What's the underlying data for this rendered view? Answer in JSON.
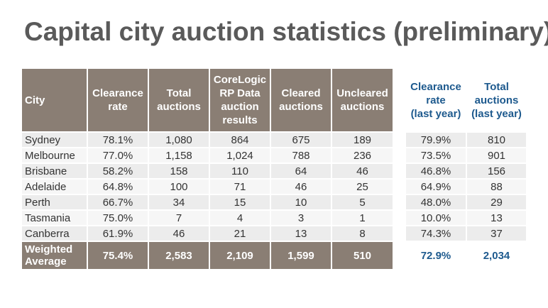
{
  "title": "Capital city auction statistics (preliminary)",
  "main_table": {
    "headers": {
      "city": "City",
      "clearance_rate": [
        "Clearance",
        "rate"
      ],
      "total_auctions": [
        "Total",
        "auctions"
      ],
      "corelogic": [
        "CoreLogic",
        "RP Data",
        "auction",
        "results"
      ],
      "cleared": [
        "Cleared",
        "auctions"
      ],
      "uncleared": [
        "Uncleared",
        "auctions"
      ]
    },
    "rows": [
      {
        "city": "Sydney",
        "clearance_rate": "78.1%",
        "total_auctions": "1,080",
        "corelogic": "864",
        "cleared": "675",
        "uncleared": "189"
      },
      {
        "city": "Melbourne",
        "clearance_rate": "77.0%",
        "total_auctions": "1,158",
        "corelogic": "1,024",
        "cleared": "788",
        "uncleared": "236"
      },
      {
        "city": "Brisbane",
        "clearance_rate": "58.2%",
        "total_auctions": "158",
        "corelogic": "110",
        "cleared": "64",
        "uncleared": "46"
      },
      {
        "city": "Adelaide",
        "clearance_rate": "64.8%",
        "total_auctions": "100",
        "corelogic": "71",
        "cleared": "46",
        "uncleared": "25"
      },
      {
        "city": "Perth",
        "clearance_rate": "66.7%",
        "total_auctions": "34",
        "corelogic": "15",
        "cleared": "10",
        "uncleared": "5"
      },
      {
        "city": "Tasmania",
        "clearance_rate": "75.0%",
        "total_auctions": "7",
        "corelogic": "4",
        "cleared": "3",
        "uncleared": "1"
      },
      {
        "city": "Canberra",
        "clearance_rate": "61.9%",
        "total_auctions": "46",
        "corelogic": "21",
        "cleared": "13",
        "uncleared": "8"
      }
    ],
    "footer": {
      "city": [
        "Weighted",
        "Average"
      ],
      "clearance_rate": "75.4%",
      "total_auctions": "2,583",
      "corelogic": "2,109",
      "cleared": "1,599",
      "uncleared": "510"
    }
  },
  "last_year_table": {
    "headers": {
      "clearance_rate": [
        "Clearance",
        "rate",
        "(last year)"
      ],
      "total_auctions": [
        "Total",
        "auctions",
        "(last year)"
      ]
    },
    "rows": [
      {
        "clearance_rate": "79.9%",
        "total_auctions": "810"
      },
      {
        "clearance_rate": "73.5%",
        "total_auctions": "901"
      },
      {
        "clearance_rate": "46.8%",
        "total_auctions": "156"
      },
      {
        "clearance_rate": "64.9%",
        "total_auctions": "88"
      },
      {
        "clearance_rate": "48.0%",
        "total_auctions": "29"
      },
      {
        "clearance_rate": "10.0%",
        "total_auctions": "13"
      },
      {
        "clearance_rate": "74.3%",
        "total_auctions": "37"
      }
    ],
    "footer": {
      "clearance_rate": "72.9%",
      "total_auctions": "2,034"
    }
  },
  "colors": {
    "header_bg": "#8a7e74",
    "title_text": "#5a5a5a",
    "last_year_accent": "#1e5a8e",
    "row_bg": "#ececec"
  }
}
